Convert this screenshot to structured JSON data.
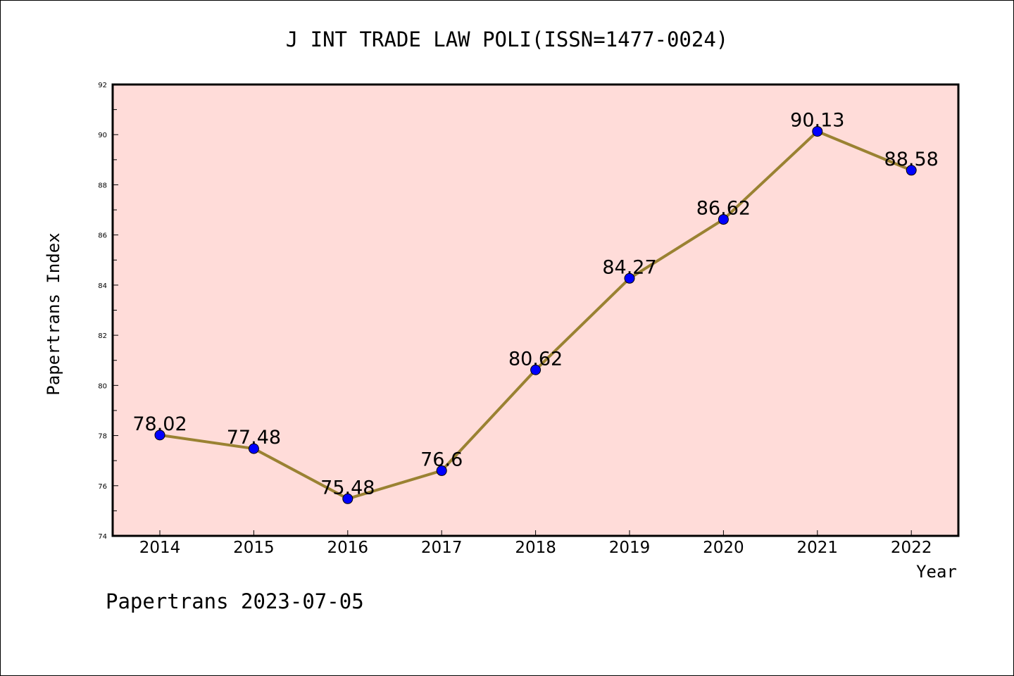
{
  "chart_data": {
    "type": "line",
    "title": "J INT TRADE LAW POLI(ISSN=1477-0024)",
    "xlabel": "Year",
    "ylabel": "Papertrans Index",
    "footer": "Papertrans 2023-07-05",
    "categories": [
      "2014",
      "2015",
      "2016",
      "2017",
      "2018",
      "2019",
      "2020",
      "2021",
      "2022"
    ],
    "series": [
      {
        "values": [
          78.02,
          77.48,
          75.48,
          76.6,
          80.62,
          84.27,
          86.62,
          90.13,
          88.58
        ],
        "data_labels": [
          "78.02",
          "77.48",
          "75.48",
          "76.6",
          "80.62",
          "84.27",
          "86.62",
          "90.13",
          "88.58"
        ]
      }
    ],
    "ylim": [
      74,
      92
    ],
    "yticks": [
      "74",
      "76",
      "78",
      "80",
      "82",
      "84",
      "86",
      "88",
      "90",
      "92"
    ],
    "grid": false,
    "colors": {
      "plot_background": "#ffdcd9",
      "line": "#9a8232",
      "marker": "#0000ff",
      "axis": "#000000"
    }
  }
}
